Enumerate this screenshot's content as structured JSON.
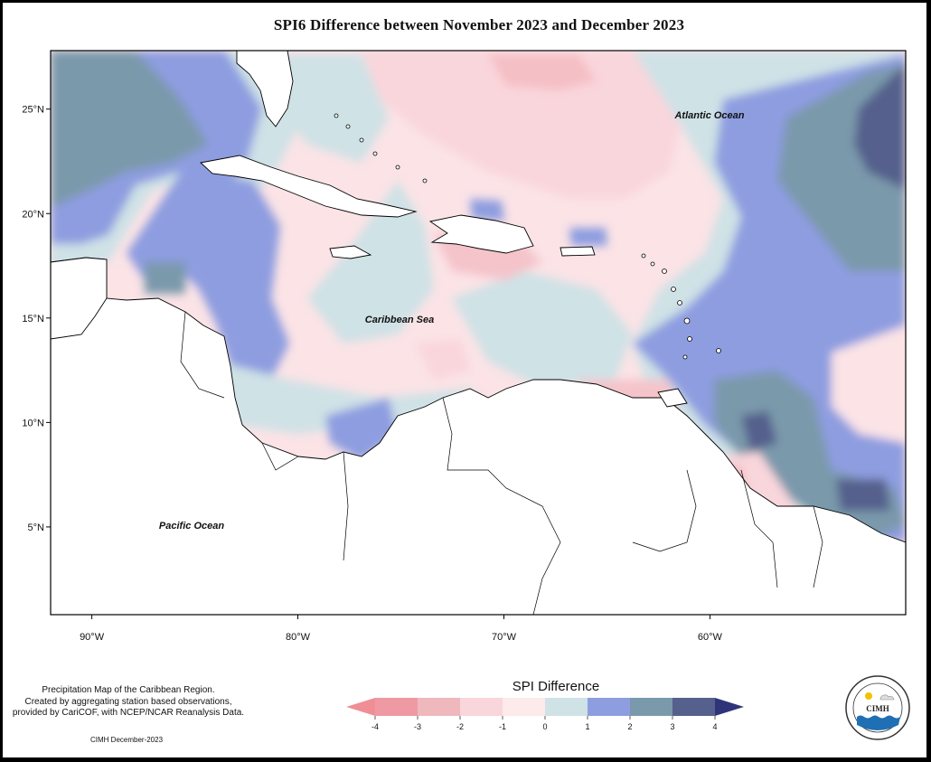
{
  "title": "SPI6 Difference between November 2023 and December 2023",
  "map": {
    "extent": {
      "lon": [
        -92,
        -50.5
      ],
      "lat": [
        0.8,
        27.8
      ]
    },
    "lat_ticks": [
      {
        "value": 25,
        "label": "25°N"
      },
      {
        "value": 20,
        "label": "20°N"
      },
      {
        "value": 15,
        "label": "15°N"
      },
      {
        "value": 10,
        "label": "10°N"
      },
      {
        "value": 5,
        "label": "5°N"
      }
    ],
    "lon_ticks": [
      {
        "value": -90,
        "label": "90°W"
      },
      {
        "value": -80,
        "label": "80°W"
      },
      {
        "value": -70,
        "label": "70°W"
      },
      {
        "value": -60,
        "label": "60°W"
      }
    ],
    "place_labels": {
      "atlantic": "Atlantic Ocean",
      "caribbean": "Caribbean Sea",
      "pacific": "Pacific Ocean"
    }
  },
  "legend": {
    "title": "SPI Difference",
    "ticks": [
      "-4",
      "-3",
      "-2",
      "-1",
      "0",
      "1",
      "2",
      "3",
      "4"
    ],
    "classes": [
      {
        "range": "< -4",
        "color": "#f08e96"
      },
      {
        "range": "-4 to -3",
        "color": "#ef9aa3"
      },
      {
        "range": "-3 to -2",
        "color": "#eeb8bd"
      },
      {
        "range": "-2 to -1",
        "color": "#f9d6dc"
      },
      {
        "range": "-1 to 0",
        "color": "#fdeaea"
      },
      {
        "range": "0 to 1",
        "color": "#cfe2e6"
      },
      {
        "range": "1 to 2",
        "color": "#8e9de0"
      },
      {
        "range": "2 to 3",
        "color": "#7a99ab"
      },
      {
        "range": "3 to 4",
        "color": "#55608c"
      },
      {
        "range": "> 4",
        "color": "#2f347a"
      }
    ]
  },
  "note": "Precipitation Map of the Caribbean Region.\nCreated by aggregating station based observations,\nprovided by CariCOF, with NCEP/NCAR Reanalysis Data.",
  "credit": "CIMH December-2023",
  "logo_text": "CIMH"
}
